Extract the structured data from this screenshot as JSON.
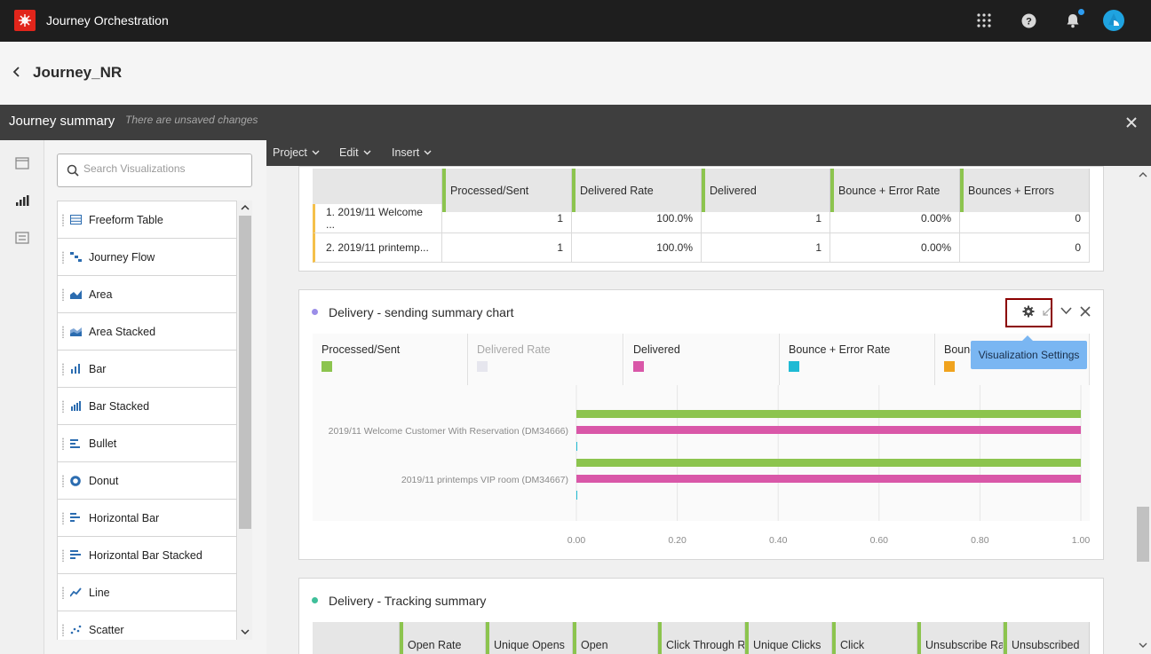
{
  "app": {
    "title": "Journey Orchestration"
  },
  "breadcrumb": {
    "journey_name": "Journey_NR"
  },
  "summary": {
    "title": "Journey summary",
    "subtitle": "There are unsaved changes"
  },
  "search": {
    "placeholder": "Search Visualizations"
  },
  "visualizations": [
    {
      "label": "Freeform Table",
      "icon": "table-icon"
    },
    {
      "label": "Journey Flow",
      "icon": "flow-icon"
    },
    {
      "label": "Area",
      "icon": "area-chart-icon"
    },
    {
      "label": "Area Stacked",
      "icon": "area-stacked-icon"
    },
    {
      "label": "Bar",
      "icon": "bar-chart-icon"
    },
    {
      "label": "Bar Stacked",
      "icon": "bar-stacked-icon"
    },
    {
      "label": "Bullet",
      "icon": "bullet-chart-icon"
    },
    {
      "label": "Donut",
      "icon": "donut-chart-icon"
    },
    {
      "label": "Horizontal Bar",
      "icon": "horizontal-bar-icon"
    },
    {
      "label": "Horizontal Bar Stacked",
      "icon": "horizontal-bar-stacked-icon"
    },
    {
      "label": "Line",
      "icon": "line-chart-icon"
    },
    {
      "label": "Scatter",
      "icon": "scatter-chart-icon"
    }
  ],
  "toolbar": {
    "menus": [
      "Project",
      "Edit",
      "Insert"
    ]
  },
  "table1": {
    "columns": [
      "Processed/Sent",
      "Delivered Rate",
      "Delivered",
      "Bounce + Error Rate",
      "Bounces + Errors"
    ],
    "rows": [
      {
        "label": "1.  2019/11 Welcome ...",
        "values": [
          "1",
          "100.0%",
          "1",
          "0.00%",
          "0"
        ]
      },
      {
        "label": "2.  2019/11 printemp...",
        "values": [
          "1",
          "100.0%",
          "1",
          "0.00%",
          "0"
        ]
      }
    ]
  },
  "chart_section": {
    "title": "Delivery - sending summary chart",
    "tooltip": "Visualization Settings",
    "legend": [
      {
        "name": "Processed/Sent",
        "color": "#8cc44e",
        "dimmed": false
      },
      {
        "name": "Delivered Rate",
        "color": "#e6e6ee",
        "dimmed": true
      },
      {
        "name": "Delivered",
        "color": "#d957a8",
        "dimmed": false
      },
      {
        "name": "Bounce + Error Rate",
        "color": "#1ebad4",
        "dimmed": false
      },
      {
        "name": "Bounc",
        "color": "#f0a31e",
        "dimmed": false
      }
    ]
  },
  "chart_data": {
    "type": "bar",
    "orientation": "horizontal",
    "categories": [
      "2019/11 Welcome Customer With Reservation (DM34666)",
      "2019/11 printemps VIP room (DM34667)"
    ],
    "series": [
      {
        "name": "Processed/Sent",
        "values": [
          1.0,
          1.0
        ]
      },
      {
        "name": "Delivered",
        "values": [
          1.0,
          1.0
        ]
      },
      {
        "name": "Bounce + Error Rate",
        "values": [
          0.0,
          0.0
        ]
      }
    ],
    "xlim": [
      0,
      1
    ],
    "xticks": [
      "0.00",
      "0.20",
      "0.40",
      "0.60",
      "0.80",
      "1.00"
    ],
    "grid": true
  },
  "tracking_section": {
    "title": "Delivery - Tracking summary",
    "columns": [
      "Open Rate",
      "Unique Opens",
      "Open",
      "Click Through R",
      "Unique Clicks",
      "Click",
      "Unsubscribe Ra",
      "Unsubscribed"
    ]
  },
  "colors": {
    "accent": "#8cc44e",
    "chart_dot": "#9b8ee8",
    "tracking_dot": "#3fbf9a",
    "header": "#1e1e1e"
  }
}
